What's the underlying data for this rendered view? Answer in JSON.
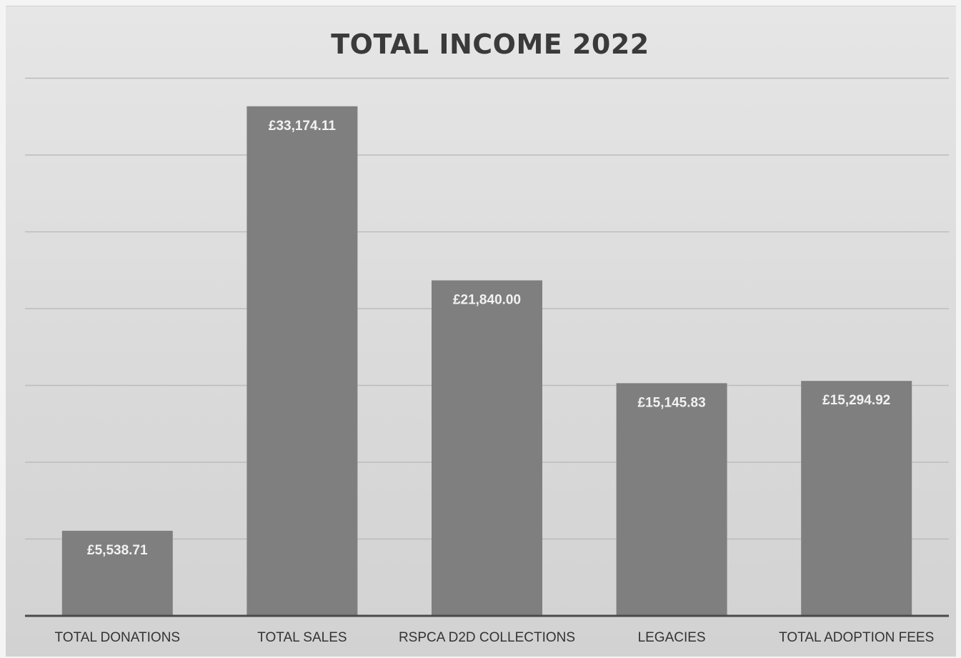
{
  "chart_data": {
    "type": "bar",
    "title": "TOTAL INCOME 2022",
    "xlabel": "",
    "ylabel": "",
    "categories": [
      "TOTAL DONATIONS",
      "TOTAL SALES",
      "RSPCA D2D COLLECTIONS",
      "LEGACIES",
      "TOTAL ADOPTION FEES"
    ],
    "values": [
      5538.71,
      33174.11,
      21840.0,
      15145.83,
      15294.92
    ],
    "value_labels": [
      "£5,538.71",
      "£33,174.11",
      "£21,840.00",
      "£15,145.83",
      "£15,294.92"
    ],
    "ylim": [
      0,
      35000
    ],
    "grid": true,
    "legend": "none",
    "colors": {
      "bar": "#7f7f7f",
      "gridline": "#bcbcbc",
      "axis": "#4a4a4a"
    }
  }
}
